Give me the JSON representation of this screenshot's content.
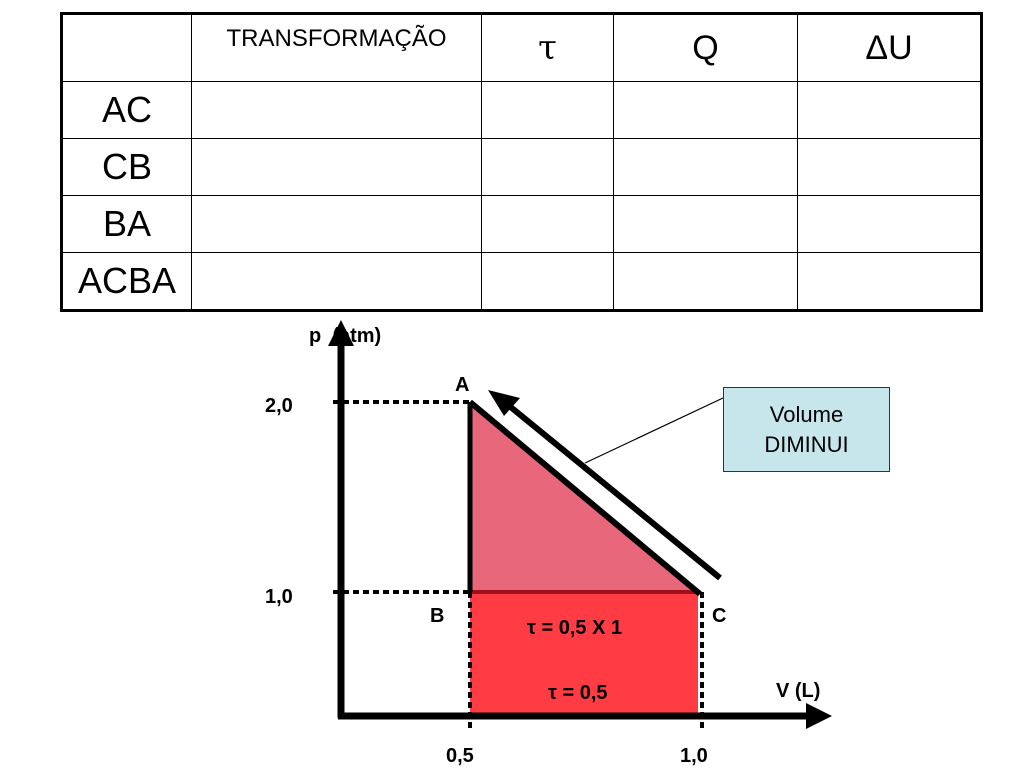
{
  "table": {
    "headers": [
      "",
      "TRANSFORMAÇÃO",
      "τ",
      "Q",
      "ΔU"
    ],
    "rows": [
      "AC",
      "CB",
      "BA",
      "ACBA"
    ]
  },
  "graph": {
    "y_axis_label": "p  (atm)",
    "x_axis_label": "V (L)",
    "y_ticks": [
      "2,0",
      "1,0"
    ],
    "x_ticks": [
      "0,5",
      "1,0"
    ],
    "points": {
      "A": "A",
      "B": "B",
      "C": "C"
    },
    "work_label_1": "τ = 0,5 X 1",
    "work_label_2": "τ = 0,5",
    "colors": {
      "triangle": "#e8677a",
      "rectangle": "#ff3c44",
      "callout": "#c6e6ec"
    }
  },
  "callout": {
    "line1": "Volume",
    "line2": "DIMINUI"
  }
}
